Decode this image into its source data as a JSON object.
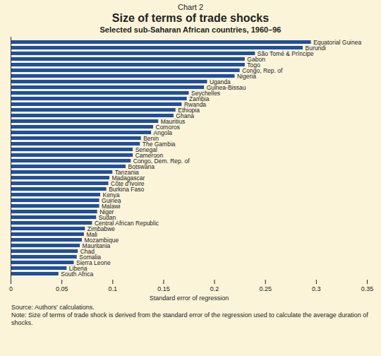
{
  "chart_data": {
    "type": "bar",
    "orientation": "horizontal",
    "label": "Chart 2",
    "title": "Size of terms of trade shocks",
    "subtitle": "Selected sub-Saharan African countries, 1960–96",
    "x_label": "Standard error of regression",
    "source": "Source: Authors' calculations.",
    "note": "Note: Size of terms of trade shock is derived from the standard error of the regression used to calculate the average duration of shocks.",
    "categories": [
      "Equatorial Guinea",
      "Burundi",
      "São Tomé & Príncipe",
      "Gabon",
      "Togo",
      "Congo, Rep. of",
      "Nigeria",
      "Uganda",
      "Guinea-Bissau",
      "Seychelles",
      "Zambia",
      "Rwanda",
      "Ethiopia",
      "Ghana",
      "Mauritius",
      "Comoros",
      "Angola",
      "Benin",
      "The Gambia",
      "Senegal",
      "Cameroon",
      "Congo, Dem. Rep. of",
      "Botswana",
      "Tanzania",
      "Madagascar",
      "Côte d'Ivoire",
      "Burkina Faso",
      "Kenya",
      "Guinea",
      "Malawi",
      "Niger",
      "Sudan",
      "Central African Republic",
      "Zimbabwe",
      "Mali",
      "Mozambique",
      "Mauritania",
      "Chad",
      "Somalia",
      "Sierra Leone",
      "Liberia",
      "South Africa"
    ],
    "values": [
      0.295,
      0.287,
      0.24,
      0.23,
      0.23,
      0.225,
      0.22,
      0.193,
      0.19,
      0.175,
      0.173,
      0.168,
      0.162,
      0.16,
      0.145,
      0.14,
      0.138,
      0.128,
      0.127,
      0.12,
      0.12,
      0.118,
      0.113,
      0.1,
      0.097,
      0.096,
      0.094,
      0.088,
      0.087,
      0.087,
      0.085,
      0.084,
      0.08,
      0.073,
      0.072,
      0.07,
      0.068,
      0.066,
      0.065,
      0.062,
      0.055,
      0.047
    ],
    "color": "#1f4f9e",
    "xlim": [
      0,
      0.35
    ],
    "xticks": [
      0,
      0.05,
      0.1,
      0.15,
      0.2,
      0.25,
      0.3,
      0.35
    ],
    "tick_labels": "x",
    "grid": false
  }
}
